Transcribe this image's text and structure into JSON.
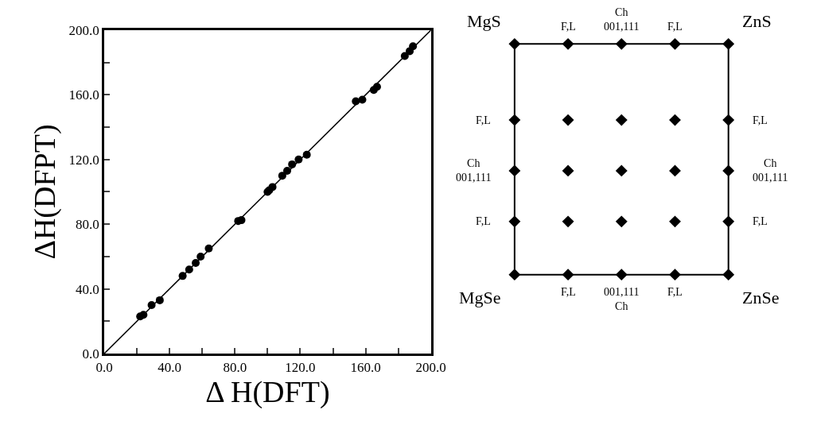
{
  "chart_data": [
    {
      "type": "scatter",
      "xlabel": "Δ H(DFT)",
      "ylabel": "ΔH(DFPT)",
      "marker": "circle",
      "xlim": [
        0,
        200
      ],
      "ylim": [
        0,
        200
      ],
      "xticks": [
        {
          "value": 0,
          "label": "0.0"
        },
        {
          "value": 20,
          "label": null
        },
        {
          "value": 40,
          "label": "40.0"
        },
        {
          "value": 60,
          "label": null
        },
        {
          "value": 80,
          "label": "80.0"
        },
        {
          "value": 100,
          "label": null
        },
        {
          "value": 120,
          "label": "120.0"
        },
        {
          "value": 140,
          "label": null
        },
        {
          "value": 160,
          "label": "160.0"
        },
        {
          "value": 180,
          "label": null
        },
        {
          "value": 200,
          "label": "200.0"
        }
      ],
      "yticks": [
        {
          "value": 0,
          "label": "0.0"
        },
        {
          "value": 20,
          "label": null
        },
        {
          "value": 40,
          "label": "40.0"
        },
        {
          "value": 60,
          "label": null
        },
        {
          "value": 80,
          "label": "80.0"
        },
        {
          "value": 100,
          "label": null
        },
        {
          "value": 120,
          "label": "120.0"
        },
        {
          "value": 140,
          "label": null
        },
        {
          "value": 160,
          "label": "160.0"
        },
        {
          "value": 180,
          "label": null
        },
        {
          "value": 200,
          "label": "200.0"
        }
      ],
      "series": [
        {
          "type": "scatter",
          "color": "#000000",
          "x": [
            22,
            24,
            29,
            34,
            48,
            52,
            56,
            59,
            64,
            82,
            84,
            100,
            101,
            103,
            109,
            112,
            115,
            119,
            124,
            154,
            158,
            165,
            167,
            184,
            187,
            189
          ],
          "values": [
            23,
            24,
            30,
            33,
            48,
            52,
            56,
            60,
            65,
            82,
            82.5,
            100,
            101,
            103,
            110,
            113,
            117,
            120,
            123,
            156,
            157,
            163,
            165,
            184,
            187,
            190
          ]
        },
        {
          "type": "line",
          "color": "#000000",
          "marker": "none",
          "x": [
            0,
            200
          ],
          "values": [
            0,
            200
          ]
        }
      ]
    },
    {
      "type": "other",
      "annotations": [
        "MgS",
        "F,L",
        "Ch\n001,111",
        "F,L",
        "ZnS",
        "F,L",
        "F,L",
        "Ch\n001,111",
        "Ch\n001,111",
        "F,L",
        "F,L",
        "MgSe",
        "F,L",
        "001,111\nCh",
        "F,L",
        "ZnSe"
      ]
    }
  ]
}
